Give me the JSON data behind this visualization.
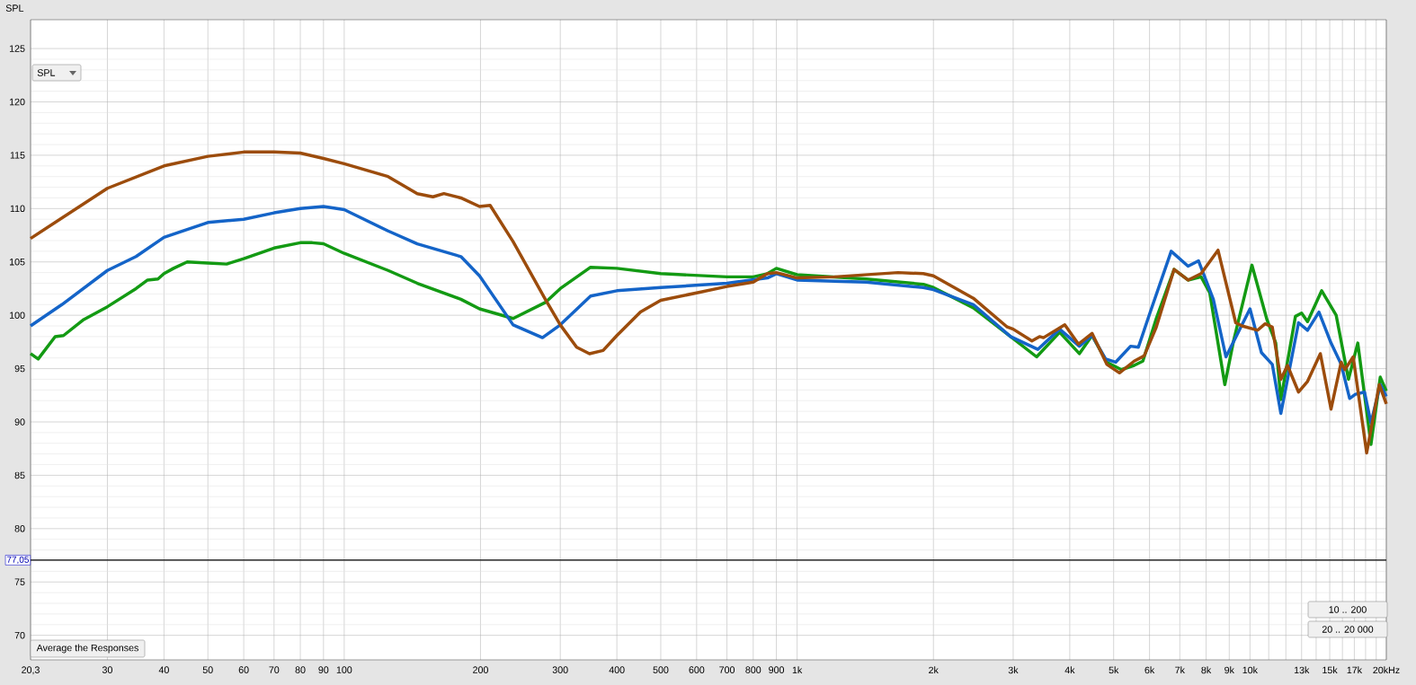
{
  "chart_data": {
    "type": "line",
    "ylabel": "SPL",
    "xlim": [
      20.3,
      20000
    ],
    "ylim": [
      67.7,
      127.7
    ],
    "log": "x",
    "grid": true,
    "xticks": [
      {
        "value": 20.3,
        "label": "20,3"
      },
      30,
      40,
      50,
      60,
      70,
      80,
      90,
      100,
      200,
      300,
      400,
      500,
      600,
      700,
      800,
      900,
      {
        "value": 1000,
        "label": "1k"
      },
      {
        "value": 2000,
        "label": "2k"
      },
      {
        "value": 3000,
        "label": "3k"
      },
      {
        "value": 4000,
        "label": "4k"
      },
      {
        "value": 5000,
        "label": "5k"
      },
      {
        "value": 6000,
        "label": "6k"
      },
      {
        "value": 7000,
        "label": "7k"
      },
      {
        "value": 8000,
        "label": "8k"
      },
      {
        "value": 9000,
        "label": "9k"
      },
      {
        "value": 10000,
        "label": "10k"
      },
      {
        "value": 11000,
        "label": null
      },
      {
        "value": 12000,
        "label": null
      },
      {
        "value": 13000,
        "label": "13k"
      },
      {
        "value": 14000,
        "label": null
      },
      {
        "value": 15000,
        "label": "15k"
      },
      {
        "value": 16000,
        "label": null
      },
      {
        "value": 17000,
        "label": "17k"
      },
      {
        "value": 18000,
        "label": null
      },
      {
        "value": 19000,
        "label": null
      },
      {
        "value": 20000,
        "label": "20k"
      }
    ],
    "xlabel": "Hz",
    "yticks": [
      70,
      75,
      80,
      85,
      90,
      95,
      100,
      105,
      110,
      115,
      120,
      125
    ],
    "ref_lines": [
      {
        "axis": "y",
        "value": 77.05,
        "label": "77,05",
        "color": "#000000"
      }
    ],
    "annotations": [
      "SPL",
      "Average the Responses",
      "10 .. 200",
      "20 .. 20 000"
    ],
    "series": [
      {
        "color": "#139a13",
        "x": [
          20.3,
          21.1,
          23.0,
          24,
          26.6,
          30,
          34.7,
          36.8,
          38.8,
          40,
          42,
          45,
          50,
          55,
          60,
          70,
          80,
          85,
          90,
          100,
          125,
          145,
          181,
          199,
          236,
          278,
          300,
          350,
          400,
          500,
          700,
          800,
          860,
          900,
          1000,
          1420,
          1900,
          2000,
          2450,
          2960,
          3380,
          3800,
          4200,
          4480,
          4830,
          5200,
          5550,
          5800,
          6200,
          6800,
          7300,
          7800,
          8150,
          8800,
          9200,
          10100,
          10900,
          11400,
          11700,
          12600,
          13000,
          13400,
          14400,
          15500,
          16500,
          17300,
          18500,
          19400,
          20000
        ],
        "values": [
          96.4,
          95.9,
          98.0,
          98.1,
          99.6,
          100.8,
          102.5,
          103.3,
          103.4,
          103.9,
          104.4,
          105.0,
          104.9,
          104.8,
          105.3,
          106.3,
          106.8,
          106.8,
          106.7,
          105.8,
          104.2,
          103.0,
          101.5,
          100.6,
          99.7,
          101.2,
          102.5,
          104.5,
          104.4,
          103.9,
          103.6,
          103.6,
          103.9,
          104.4,
          103.8,
          103.4,
          102.9,
          102.6,
          100.7,
          98.0,
          96.1,
          98.4,
          96.4,
          98.1,
          95.6,
          94.9,
          95.3,
          95.7,
          99.6,
          104.3,
          103.3,
          103.6,
          102.1,
          93.5,
          97.6,
          104.7,
          99.6,
          97.4,
          92.1,
          99.9,
          100.2,
          99.4,
          102.3,
          100.0,
          94.0,
          97.4,
          87.9,
          94.2,
          92.9
        ]
      },
      {
        "color": "#1464c8",
        "x": [
          20.3,
          23.8,
          30,
          34.7,
          40,
          50,
          60,
          70,
          80,
          90,
          100,
          125,
          145,
          181,
          199,
          236,
          274,
          300,
          350,
          400,
          500,
          700,
          860,
          900,
          1000,
          1420,
          1900,
          2000,
          2450,
          2960,
          3400,
          3800,
          4200,
          4480,
          4800,
          5050,
          5450,
          5670,
          6000,
          6700,
          7300,
          7700,
          8300,
          8850,
          10000,
          10600,
          11200,
          11700,
          12800,
          13400,
          14200,
          15100,
          15900,
          16600,
          17100,
          17900,
          18500,
          19400,
          20000
        ],
        "values": [
          99.0,
          101.0,
          104.2,
          105.5,
          107.3,
          108.7,
          109.0,
          109.6,
          110.0,
          110.2,
          109.9,
          107.9,
          106.7,
          105.5,
          103.7,
          99.1,
          97.9,
          99.1,
          101.8,
          102.3,
          102.6,
          103.0,
          103.5,
          103.9,
          103.3,
          103.1,
          102.6,
          102.4,
          101.0,
          98.0,
          96.8,
          98.7,
          97.1,
          98.1,
          95.9,
          95.6,
          97.1,
          97.0,
          100.1,
          106.0,
          104.6,
          105.1,
          101.5,
          96.1,
          100.6,
          96.5,
          95.4,
          90.8,
          99.3,
          98.6,
          100.3,
          97.4,
          95.4,
          92.2,
          92.6,
          92.8,
          89.9,
          93.5,
          92.4
        ]
      },
      {
        "color": "#9c4c0c",
        "x": [
          20.3,
          30,
          40,
          50,
          60,
          70,
          80,
          90,
          100,
          125,
          145,
          157,
          166,
          181,
          199,
          210,
          236,
          278,
          300,
          326,
          348,
          373,
          400,
          451,
          500,
          600,
          700,
          800,
          860,
          900,
          1000,
          1210,
          1670,
          1900,
          2000,
          2450,
          2910,
          3000,
          3300,
          3430,
          3500,
          3900,
          4180,
          4480,
          4830,
          5150,
          5550,
          5840,
          6200,
          6800,
          7300,
          7800,
          8500,
          9300,
          9600,
          10400,
          10800,
          11200,
          11700,
          12100,
          12800,
          13400,
          14300,
          15100,
          15900,
          16200,
          16900,
          18100,
          19300,
          20000
        ],
        "values": [
          107.2,
          111.9,
          114.0,
          114.9,
          115.3,
          115.3,
          115.2,
          114.7,
          114.2,
          113.0,
          111.4,
          111.1,
          111.4,
          111.0,
          110.2,
          110.3,
          106.9,
          101.5,
          99.1,
          97.0,
          96.4,
          96.7,
          98.1,
          100.3,
          101.4,
          102.1,
          102.7,
          103.1,
          103.9,
          104.0,
          103.5,
          103.6,
          104.0,
          103.9,
          103.7,
          101.6,
          98.9,
          98.7,
          97.6,
          98.0,
          97.9,
          99.1,
          97.3,
          98.3,
          95.4,
          94.6,
          95.7,
          96.2,
          98.8,
          104.3,
          103.3,
          103.9,
          106.1,
          99.3,
          99.0,
          98.6,
          99.2,
          98.9,
          94.0,
          95.3,
          92.8,
          93.8,
          96.4,
          91.2,
          95.6,
          94.9,
          96.1,
          87.1,
          93.5,
          91.7
        ]
      }
    ]
  }
}
